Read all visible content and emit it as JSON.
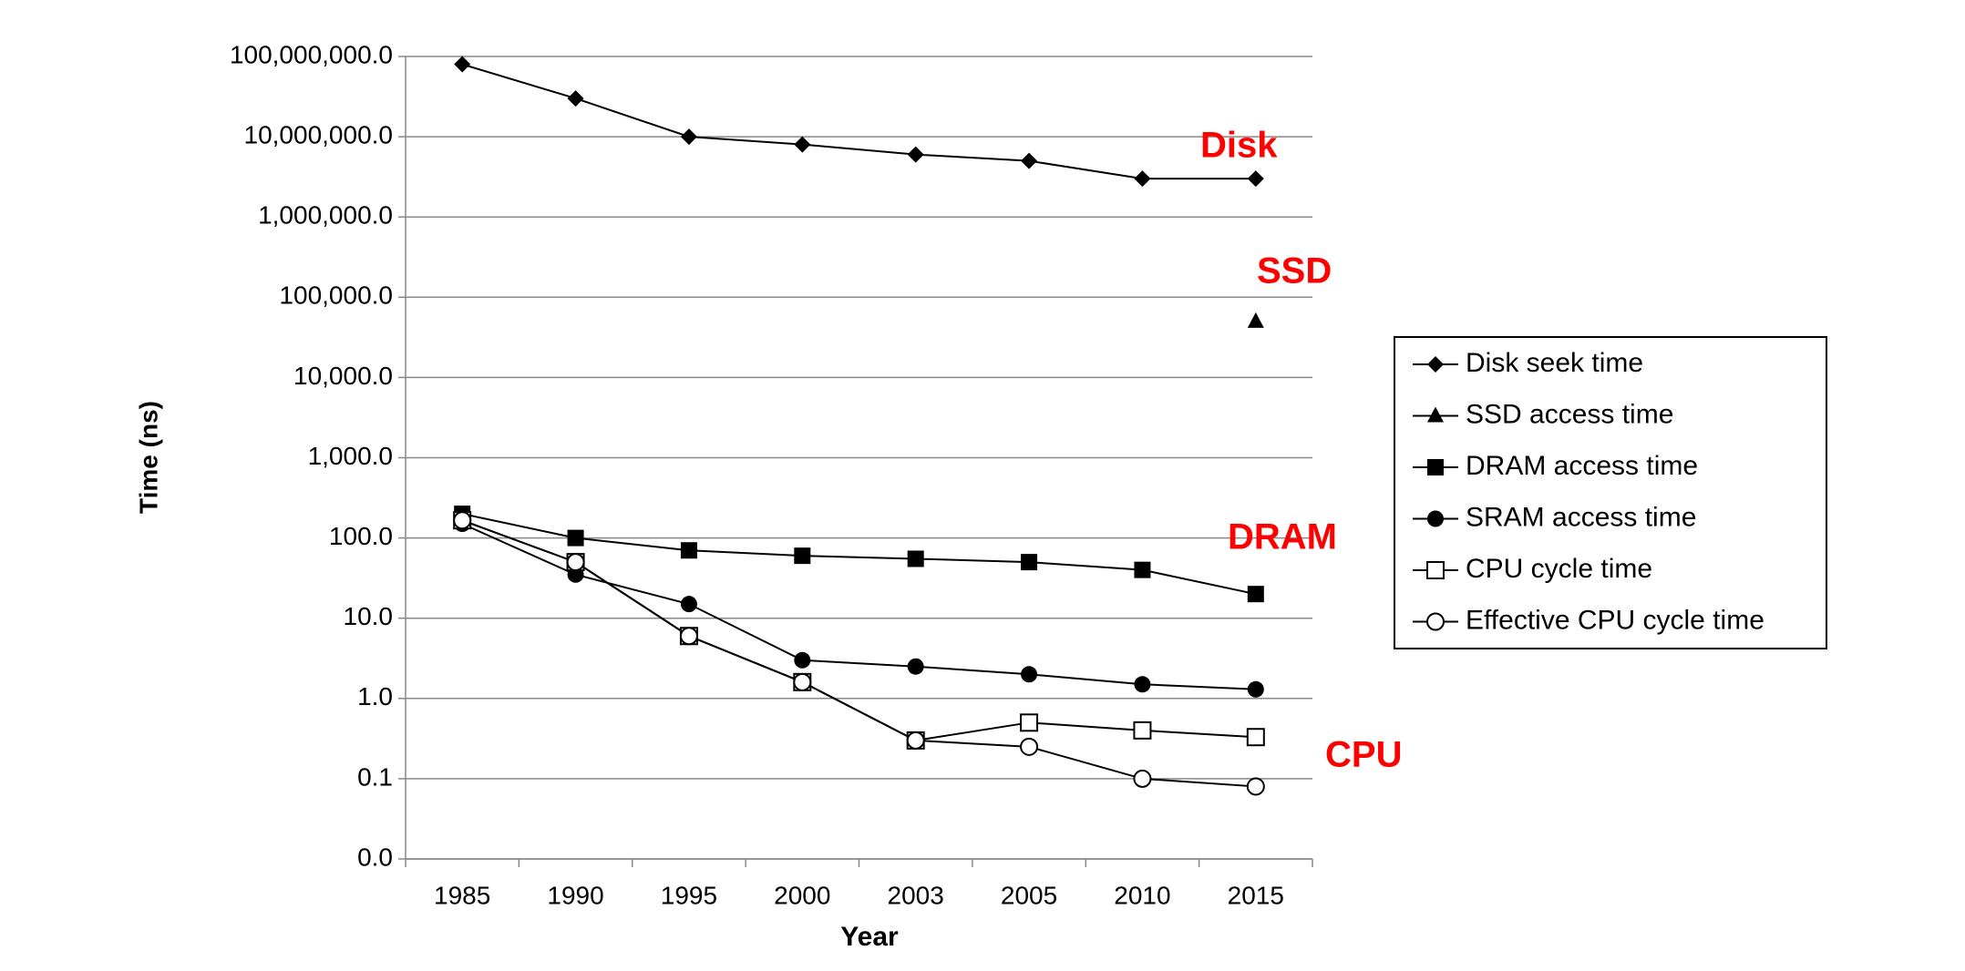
{
  "chart_data": {
    "type": "line",
    "x_label": "Year",
    "y_label": "Time (ns)",
    "categories": [
      "1985",
      "1990",
      "1995",
      "2000",
      "2003",
      "2005",
      "2010",
      "2015"
    ],
    "log_scale": true,
    "grid": true,
    "legend_position": "right",
    "ylim": [
      0.01,
      100000000
    ],
    "yticks": [
      {
        "value": 0.01,
        "label": "0.0"
      },
      {
        "value": 0.1,
        "label": "0.1"
      },
      {
        "value": 1,
        "label": "1.0"
      },
      {
        "value": 10,
        "label": "10.0"
      },
      {
        "value": 100,
        "label": "100.0"
      },
      {
        "value": 1000,
        "label": "1,000.0"
      },
      {
        "value": 10000,
        "label": "10,000.0"
      },
      {
        "value": 100000,
        "label": "100,000.0"
      },
      {
        "value": 1000000,
        "label": "1,000,000.0"
      },
      {
        "value": 10000000,
        "label": "10,000,000.0"
      },
      {
        "value": 100000000,
        "label": "100,000,000.0"
      }
    ],
    "series": [
      {
        "name": "Disk seek time",
        "color": "#000000",
        "marker": "diamond",
        "values": [
          80000000,
          30000000,
          10000000,
          8000000,
          6000000,
          5000000,
          3000000,
          3000000
        ]
      },
      {
        "name": "SSD access time",
        "color": "#000000",
        "marker": "triangle",
        "values": [
          null,
          null,
          null,
          null,
          null,
          null,
          null,
          50000
        ]
      },
      {
        "name": "DRAM access time",
        "color": "#000000",
        "marker": "square",
        "values": [
          200,
          100,
          70,
          60,
          55,
          50,
          40,
          20
        ]
      },
      {
        "name": "SRAM access time",
        "color": "#000000",
        "marker": "circle",
        "values": [
          150,
          35,
          15,
          3,
          2.5,
          2,
          1.5,
          1.3
        ]
      },
      {
        "name": "CPU cycle time",
        "color": "#000000",
        "marker": "open-square",
        "values": [
          166,
          50,
          6,
          1.6,
          0.3,
          0.5,
          0.4,
          0.33
        ]
      },
      {
        "name": "Effective CPU cycle time",
        "color": "#000000",
        "marker": "open-circle",
        "values": [
          166,
          50,
          6,
          1.6,
          0.3,
          0.25,
          0.1,
          0.08
        ]
      }
    ],
    "annotations": [
      {
        "text": "Disk",
        "color": "#ff0000"
      },
      {
        "text": "SSD",
        "color": "#ff0000"
      },
      {
        "text": "DRAM",
        "color": "#ff0000"
      },
      {
        "text": "CPU",
        "color": "#ff0000"
      }
    ]
  }
}
